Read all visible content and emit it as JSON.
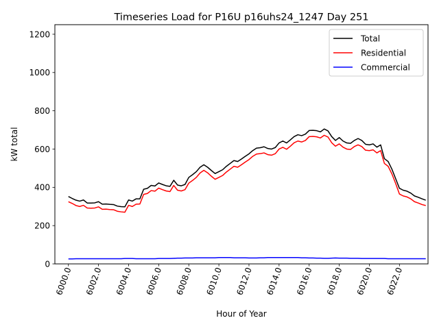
{
  "chart_data": {
    "type": "line",
    "title": "Timeseries Load for P16U p16uhs24_1247  Day 251",
    "xlabel": "Hour of Year",
    "ylabel": "kW total",
    "xlim": [
      5999.1,
      6023.9
    ],
    "ylim": [
      0,
      1250
    ],
    "xticks": [
      6000,
      6002,
      6004,
      6006,
      6008,
      6010,
      6012,
      6014,
      6016,
      6018,
      6020,
      6022
    ],
    "xtick_labels": [
      "6000.0",
      "6002.0",
      "6004.0",
      "6006.0",
      "6008.0",
      "6010.0",
      "6012.0",
      "6014.0",
      "6016.0",
      "6018.0",
      "6020.0",
      "6022.0"
    ],
    "yticks": [
      0,
      200,
      400,
      600,
      800,
      1000,
      1200
    ],
    "ytick_labels": [
      "0",
      "200",
      "400",
      "600",
      "800",
      "1000",
      "1200"
    ],
    "legend_position": "top-right",
    "x": [
      6000.0,
      6000.25,
      6000.5,
      6000.75,
      6001.0,
      6001.25,
      6001.5,
      6001.75,
      6002.0,
      6002.25,
      6002.5,
      6002.75,
      6003.0,
      6003.25,
      6003.5,
      6003.75,
      6004.0,
      6004.25,
      6004.5,
      6004.75,
      6005.0,
      6005.25,
      6005.5,
      6005.75,
      6006.0,
      6006.25,
      6006.5,
      6006.75,
      6007.0,
      6007.25,
      6007.5,
      6007.75,
      6008.0,
      6008.25,
      6008.5,
      6008.75,
      6009.0,
      6009.25,
      6009.5,
      6009.75,
      6010.0,
      6010.25,
      6010.5,
      6010.75,
      6011.0,
      6011.25,
      6011.5,
      6011.75,
      6012.0,
      6012.25,
      6012.5,
      6012.75,
      6013.0,
      6013.25,
      6013.5,
      6013.75,
      6014.0,
      6014.25,
      6014.5,
      6014.75,
      6015.0,
      6015.25,
      6015.5,
      6015.75,
      6016.0,
      6016.25,
      6016.5,
      6016.75,
      6017.0,
      6017.25,
      6017.5,
      6017.75,
      6018.0,
      6018.25,
      6018.5,
      6018.75,
      6019.0,
      6019.25,
      6019.5,
      6019.75,
      6020.0,
      6020.25,
      6020.5,
      6020.75,
      6021.0,
      6021.25,
      6021.5,
      6021.75,
      6022.0,
      6022.25,
      6022.5,
      6022.75,
      6023.0,
      6023.25,
      6023.5,
      6023.75
    ],
    "series": [
      {
        "name": "Total",
        "color": "#000000",
        "values": [
          352,
          342,
          333,
          328,
          334,
          318,
          318,
          319,
          325,
          312,
          313,
          311,
          310,
          302,
          299,
          298,
          334,
          328,
          340,
          340,
          390,
          395,
          410,
          407,
          423,
          415,
          408,
          405,
          437,
          412,
          408,
          415,
          452,
          466,
          482,
          505,
          518,
          505,
          488,
          472,
          482,
          492,
          510,
          525,
          540,
          535,
          548,
          562,
          575,
          592,
          605,
          607,
          612,
          603,
          600,
          608,
          632,
          642,
          632,
          648,
          665,
          675,
          670,
          678,
          697,
          698,
          696,
          690,
          705,
          695,
          665,
          645,
          660,
          642,
          632,
          630,
          645,
          655,
          645,
          625,
          622,
          627,
          610,
          622,
          550,
          535,
          495,
          445,
          395,
          385,
          380,
          370,
          355,
          348,
          340,
          333
        ]
      },
      {
        "name": "Residential",
        "color": "#ff0000",
        "values": [
          325,
          316,
          305,
          300,
          306,
          292,
          291,
          292,
          298,
          285,
          286,
          284,
          283,
          275,
          272,
          270,
          306,
          300,
          312,
          313,
          363,
          368,
          383,
          380,
          396,
          388,
          381,
          378,
          410,
          385,
          381,
          388,
          422,
          436,
          452,
          475,
          489,
          476,
          458,
          442,
          452,
          462,
          480,
          495,
          510,
          505,
          518,
          532,
          545,
          562,
          574,
          576,
          580,
          571,
          568,
          576,
          600,
          609,
          599,
          615,
          633,
          642,
          637,
          645,
          665,
          666,
          664,
          658,
          672,
          663,
          633,
          615,
          627,
          610,
          600,
          598,
          613,
          622,
          613,
          594,
          592,
          596,
          580,
          592,
          525,
          510,
          470,
          420,
          365,
          355,
          350,
          340,
          325,
          318,
          310,
          305
        ]
      },
      {
        "name": "Commercial",
        "color": "#0000ff",
        "values": [
          26,
          26,
          27,
          27,
          27,
          27,
          27,
          27,
          27,
          27,
          27,
          27,
          27,
          27,
          27,
          28,
          28,
          28,
          27,
          27,
          27,
          27,
          27,
          27,
          28,
          28,
          28,
          28,
          29,
          30,
          30,
          31,
          31,
          31,
          32,
          32,
          32,
          32,
          32,
          32,
          33,
          33,
          33,
          33,
          32,
          32,
          32,
          32,
          31,
          31,
          31,
          32,
          32,
          33,
          33,
          33,
          33,
          33,
          33,
          33,
          33,
          33,
          32,
          32,
          31,
          31,
          30,
          30,
          29,
          29,
          30,
          31,
          30,
          30,
          30,
          29,
          29,
          29,
          28,
          28,
          28,
          28,
          28,
          28,
          28,
          27,
          27,
          27,
          27,
          27,
          27,
          27,
          27,
          27,
          27,
          27
        ]
      }
    ]
  }
}
